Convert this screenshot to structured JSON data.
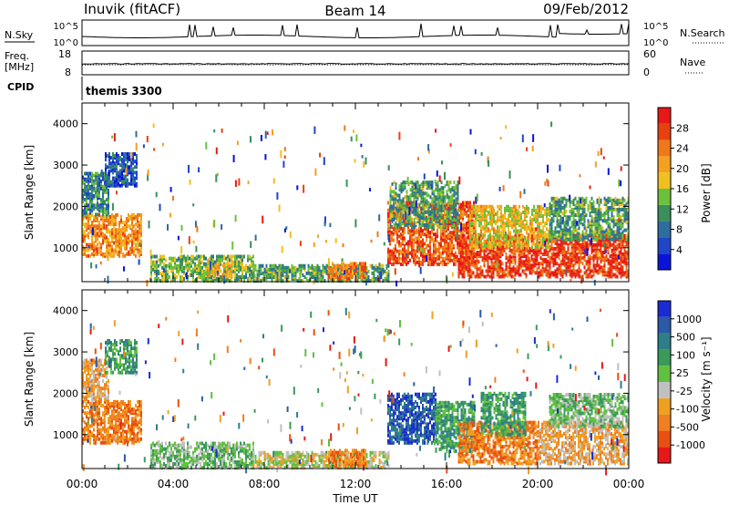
{
  "header": {
    "station": "Inuvik (fitACF)",
    "beam": "Beam 14",
    "date": "09/Feb/2012"
  },
  "labels": {
    "nsky": "N.Sky",
    "nsearch": "N.Search",
    "nave": "Nave",
    "freq_line1": "Freq.",
    "freq_line2": "[MHz]",
    "cpid": "CPID",
    "cpid_value": "themis 3300",
    "xlabel": "Time UT",
    "ylabel": "Slant Range [km]",
    "power_label": "Power [dB]",
    "velocity_label": "Velocity [m s⁻¹]"
  },
  "noise_panel": {
    "left_ticks": [
      "10^5",
      "10^0"
    ],
    "right_ticks": [
      "10^5",
      "10^0"
    ]
  },
  "freq_panel": {
    "left_ticks": [
      "18",
      "8"
    ],
    "right_ticks": [
      "60",
      "0"
    ]
  },
  "colors": {
    "power": [
      "#0a14d8",
      "#1e46c8",
      "#2e6e9e",
      "#3a8f5a",
      "#6cc03a",
      "#f0c020",
      "#f5a020",
      "#f07818",
      "#e84010",
      "#e81818"
    ],
    "velocity": [
      "#1a2cd0",
      "#2a5aa8",
      "#2e7e8a",
      "#3a9a5a",
      "#60c040",
      "#c0c0c0",
      "#f0a020",
      "#f08020",
      "#e85010",
      "#e81818"
    ]
  },
  "chart_data": [
    {
      "type": "heatmap",
      "name": "Power",
      "x": {
        "label": "Time UT",
        "range": [
          0,
          24
        ],
        "unit": "hour",
        "ticks": [
          "00:00",
          "04:00",
          "08:00",
          "12:00",
          "16:00",
          "20:00",
          "00:00"
        ]
      },
      "y": {
        "label": "Slant Range [km]",
        "range": [
          180,
          4500
        ],
        "ticks": [
          1000,
          2000,
          3000,
          4000
        ]
      },
      "colorbar": {
        "label": "Power [dB]",
        "range": [
          0,
          32
        ],
        "ticks": [
          4,
          8,
          12,
          16,
          20,
          24,
          28
        ]
      },
      "regions": [
        {
          "t0": 0.0,
          "t1": 2.6,
          "r0": 800,
          "r1": 1800,
          "level": 22
        },
        {
          "t0": 0.0,
          "t1": 1.2,
          "r0": 1800,
          "r1": 2800,
          "level": 10
        },
        {
          "t0": 1.0,
          "t1": 2.4,
          "r0": 2500,
          "r1": 3300,
          "level": 6
        },
        {
          "t0": 3.0,
          "t1": 7.5,
          "r0": 200,
          "r1": 800,
          "level": 14
        },
        {
          "t0": 5.5,
          "t1": 6.6,
          "r0": 300,
          "r1": 700,
          "level": 20
        },
        {
          "t0": 7.5,
          "t1": 13.5,
          "r0": 200,
          "r1": 600,
          "level": 12
        },
        {
          "t0": 10.8,
          "t1": 12.4,
          "r0": 250,
          "r1": 650,
          "level": 24
        },
        {
          "t0": 13.4,
          "t1": 17.2,
          "r0": 600,
          "r1": 2100,
          "level": 26
        },
        {
          "t0": 13.5,
          "t1": 16.5,
          "r0": 1500,
          "r1": 2600,
          "level": 12
        },
        {
          "t0": 16.5,
          "t1": 24.0,
          "r0": 300,
          "r1": 1300,
          "level": 28
        },
        {
          "t0": 17.0,
          "t1": 20.5,
          "r0": 1000,
          "r1": 2000,
          "level": 18
        },
        {
          "t0": 20.5,
          "t1": 24.0,
          "r0": 1200,
          "r1": 2200,
          "level": 12
        }
      ]
    },
    {
      "type": "heatmap",
      "name": "Velocity",
      "x": {
        "label": "Time UT",
        "range": [
          0,
          24
        ],
        "unit": "hour",
        "ticks": [
          "00:00",
          "04:00",
          "08:00",
          "12:00",
          "16:00",
          "20:00",
          "00:00"
        ]
      },
      "y": {
        "label": "Slant Range [km]",
        "range": [
          180,
          4500
        ],
        "ticks": [
          1000,
          2000,
          3000,
          4000
        ]
      },
      "colorbar": {
        "label": "Velocity [m s⁻¹]",
        "ticks": [
          1000,
          500,
          100,
          25,
          -25,
          -100,
          -500,
          -1000
        ]
      },
      "regions": [
        {
          "t0": 0.0,
          "t1": 2.6,
          "r0": 800,
          "r1": 1800,
          "level": 7
        },
        {
          "t0": 0.0,
          "t1": 1.2,
          "r0": 1800,
          "r1": 2800,
          "level": 6
        },
        {
          "t0": 1.0,
          "t1": 2.4,
          "r0": 2500,
          "r1": 3300,
          "level": 3
        },
        {
          "t0": 3.0,
          "t1": 7.5,
          "r0": 200,
          "r1": 800,
          "level": 4
        },
        {
          "t0": 7.5,
          "t1": 13.5,
          "r0": 200,
          "r1": 600,
          "level": 5
        },
        {
          "t0": 10.8,
          "t1": 12.4,
          "r0": 250,
          "r1": 650,
          "level": 7
        },
        {
          "t0": 13.4,
          "t1": 15.5,
          "r0": 800,
          "r1": 2000,
          "level": 1
        },
        {
          "t0": 15.5,
          "t1": 17.2,
          "r0": 600,
          "r1": 1800,
          "level": 3
        },
        {
          "t0": 16.5,
          "t1": 20.0,
          "r0": 300,
          "r1": 1300,
          "level": 7
        },
        {
          "t0": 17.5,
          "t1": 19.5,
          "r0": 1000,
          "r1": 2000,
          "level": 3
        },
        {
          "t0": 20.0,
          "t1": 24.0,
          "r0": 300,
          "r1": 1300,
          "level": 6
        },
        {
          "t0": 20.5,
          "t1": 24.0,
          "r0": 1200,
          "r1": 2000,
          "level": 4
        }
      ]
    }
  ]
}
